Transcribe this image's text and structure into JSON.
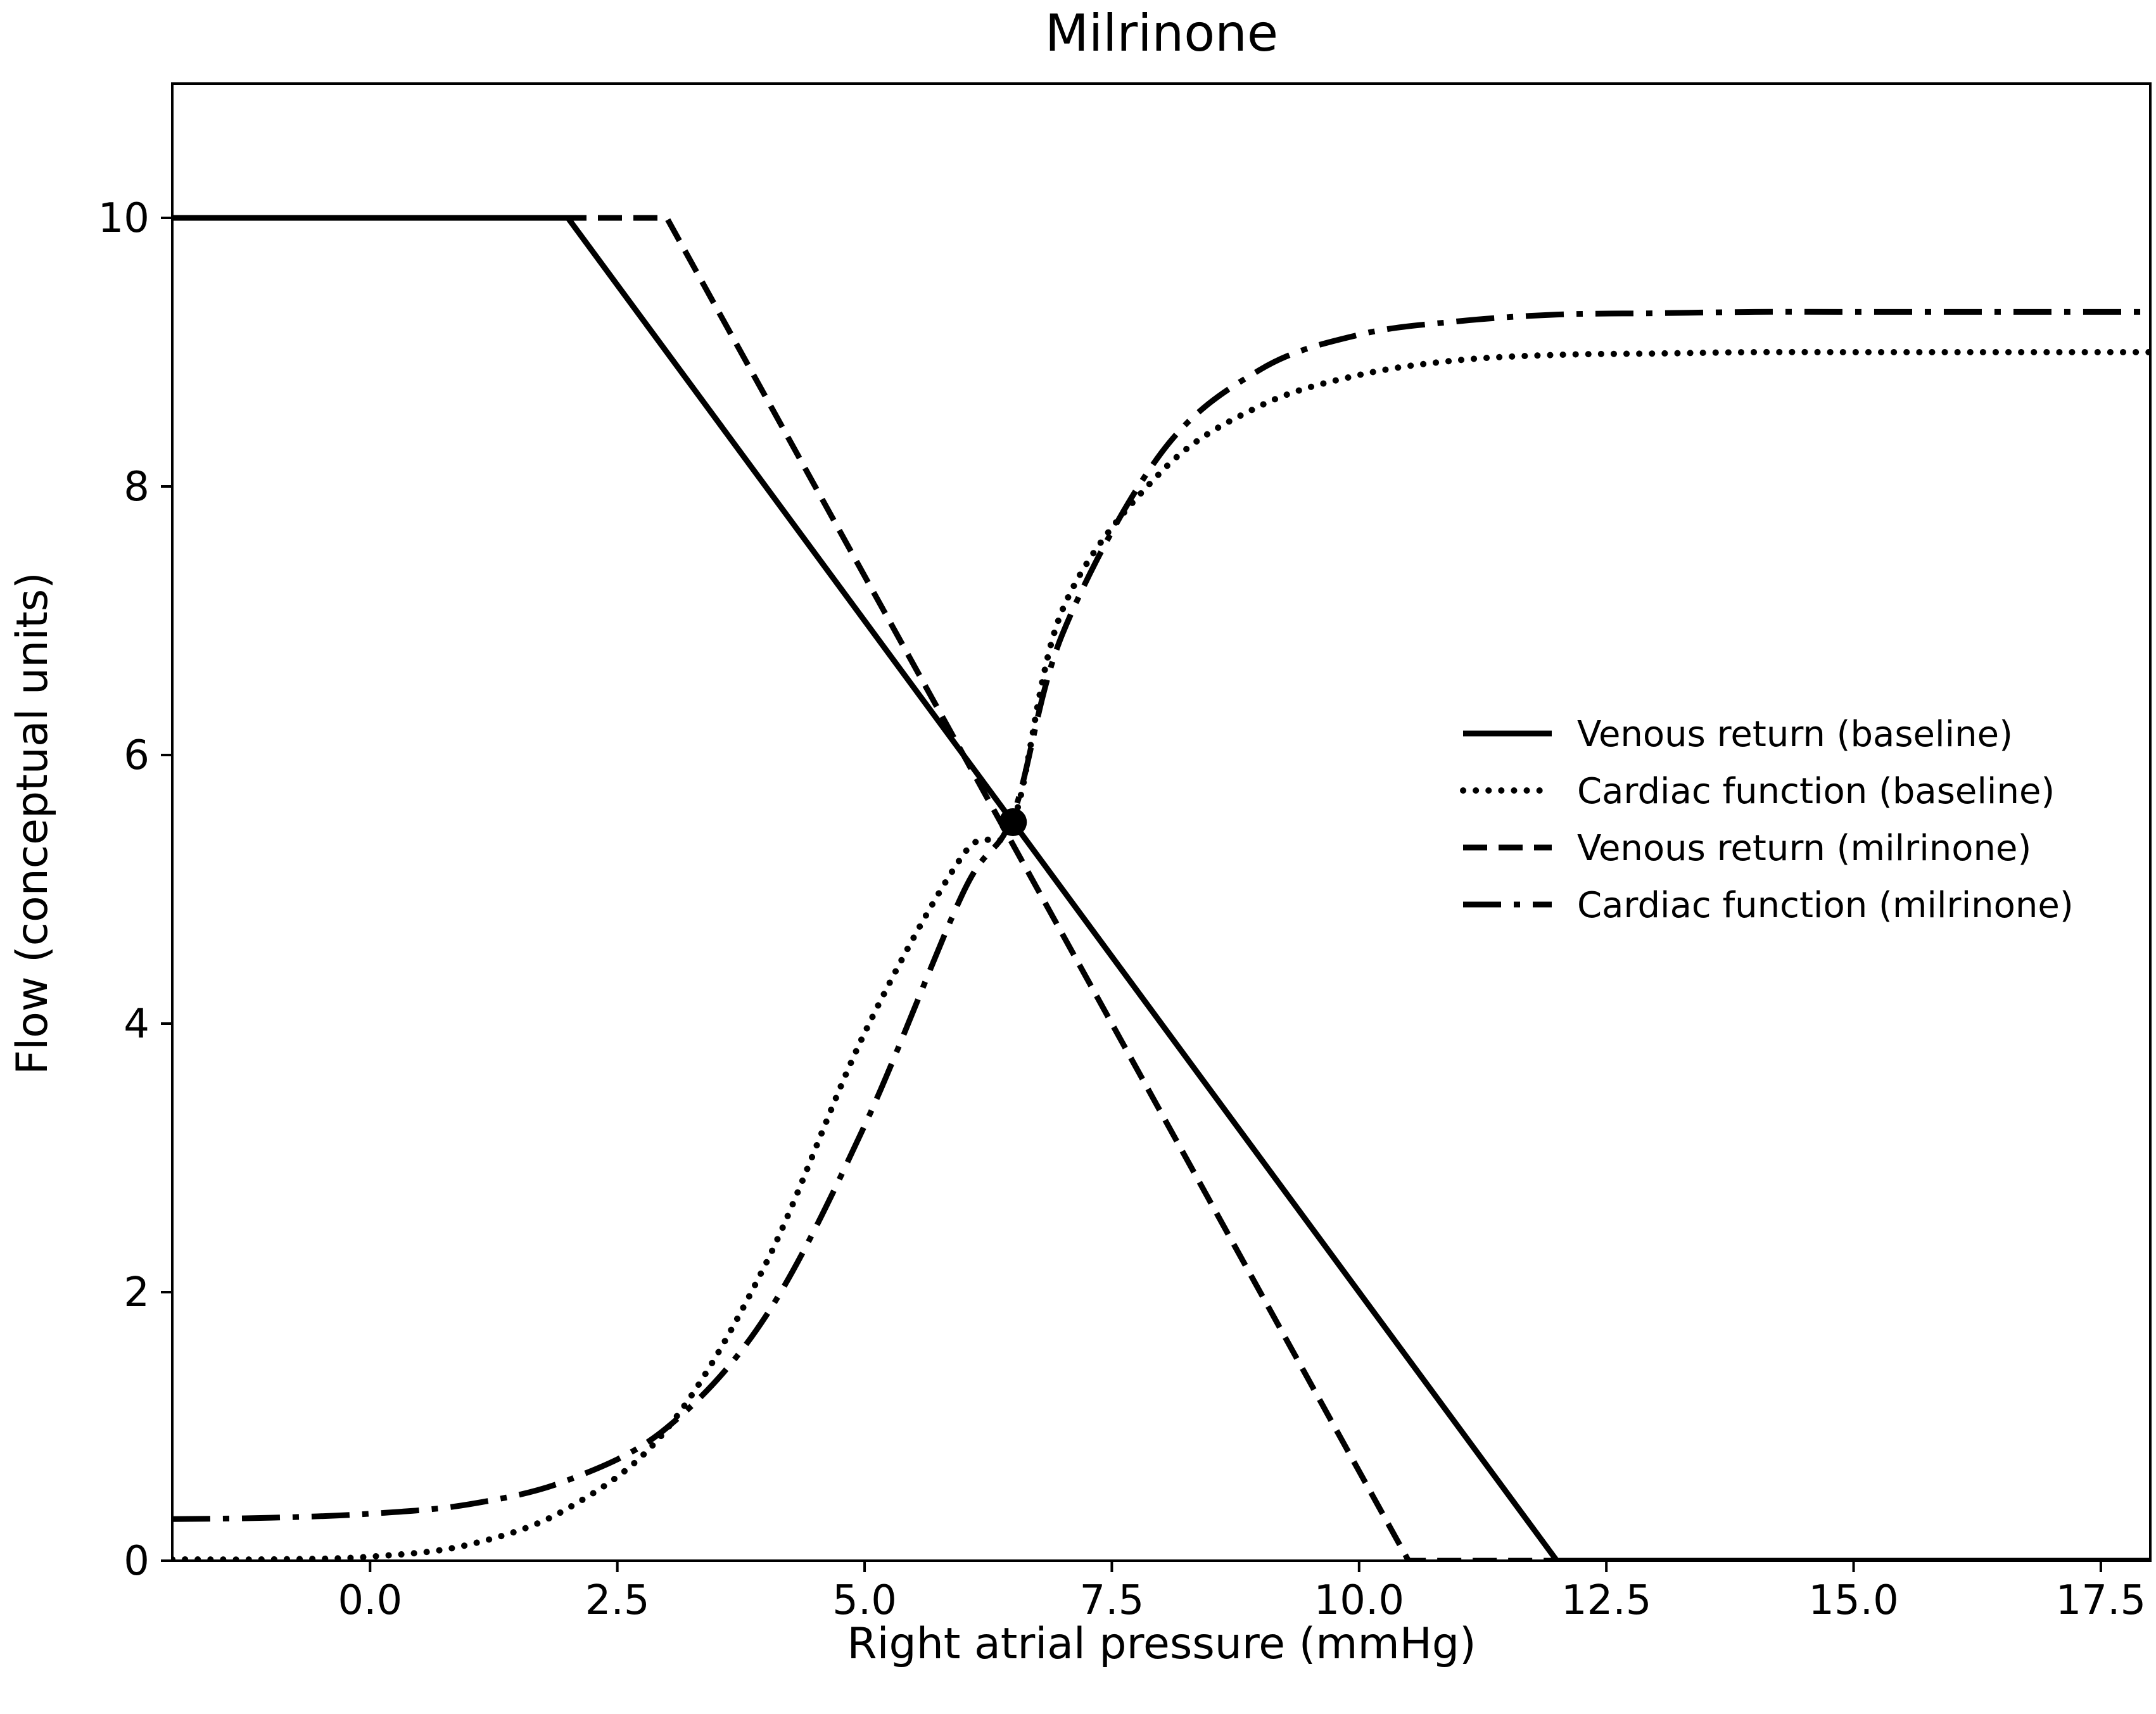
{
  "chart_data": {
    "type": "line",
    "title": "Milrinone",
    "xlabel": "Right atrial pressure (mmHg)",
    "ylabel": "Flow (conceptual units)",
    "xlim": [
      -2,
      18
    ],
    "ylim": [
      0,
      11
    ],
    "xticks": [
      0.0,
      2.5,
      5.0,
      7.5,
      10.0,
      12.5,
      15.0,
      17.5
    ],
    "xtick_labels": [
      "0.0",
      "2.5",
      "5.0",
      "7.5",
      "10.0",
      "12.5",
      "15.0",
      "17.5"
    ],
    "yticks": [
      0,
      2,
      4,
      6,
      8,
      10
    ],
    "ytick_labels": [
      "0",
      "2",
      "4",
      "6",
      "8",
      "10"
    ],
    "grid": false,
    "legend_position": "center-right",
    "series": [
      {
        "name": "Venous return (baseline)",
        "style": "solid",
        "x": [
          -2,
          2,
          12,
          18
        ],
        "y": [
          10,
          10,
          0,
          0
        ]
      },
      {
        "name": "Cardiac function (baseline)",
        "style": "dotted",
        "x": [
          -2,
          -1,
          0,
          1,
          2,
          3,
          4,
          5,
          6,
          6.5,
          7,
          8,
          9,
          10,
          11,
          12,
          13,
          14,
          15,
          16,
          17,
          18
        ],
        "y": [
          0.01,
          0.01,
          0.03,
          0.12,
          0.39,
          0.98,
          2.21,
          3.93,
          5.26,
          5.5,
          7.08,
          8.11,
          8.6,
          8.83,
          8.94,
          8.98,
          8.99,
          9.0,
          9.0,
          9.0,
          9.0,
          9.0
        ]
      },
      {
        "name": "Venous return (milrinone)",
        "style": "dashed",
        "x": [
          -2,
          3,
          10.5,
          18
        ],
        "y": [
          10,
          10,
          0,
          0
        ]
      },
      {
        "name": "Cardiac function (milrinone)",
        "style": "dashdot",
        "x": [
          -2,
          -1,
          0,
          1,
          2,
          3,
          4,
          5,
          6,
          6.5,
          7,
          8,
          9,
          10,
          11,
          12,
          13,
          14,
          15,
          16,
          17,
          18
        ],
        "y": [
          0.31,
          0.32,
          0.35,
          0.42,
          0.6,
          0.99,
          1.82,
          3.24,
          4.98,
          5.55,
          6.9,
          8.25,
          8.87,
          9.13,
          9.23,
          9.28,
          9.29,
          9.3,
          9.3,
          9.3,
          9.3,
          9.3
        ]
      }
    ],
    "markers": [
      {
        "x": 6.5,
        "y": 5.5
      }
    ]
  }
}
